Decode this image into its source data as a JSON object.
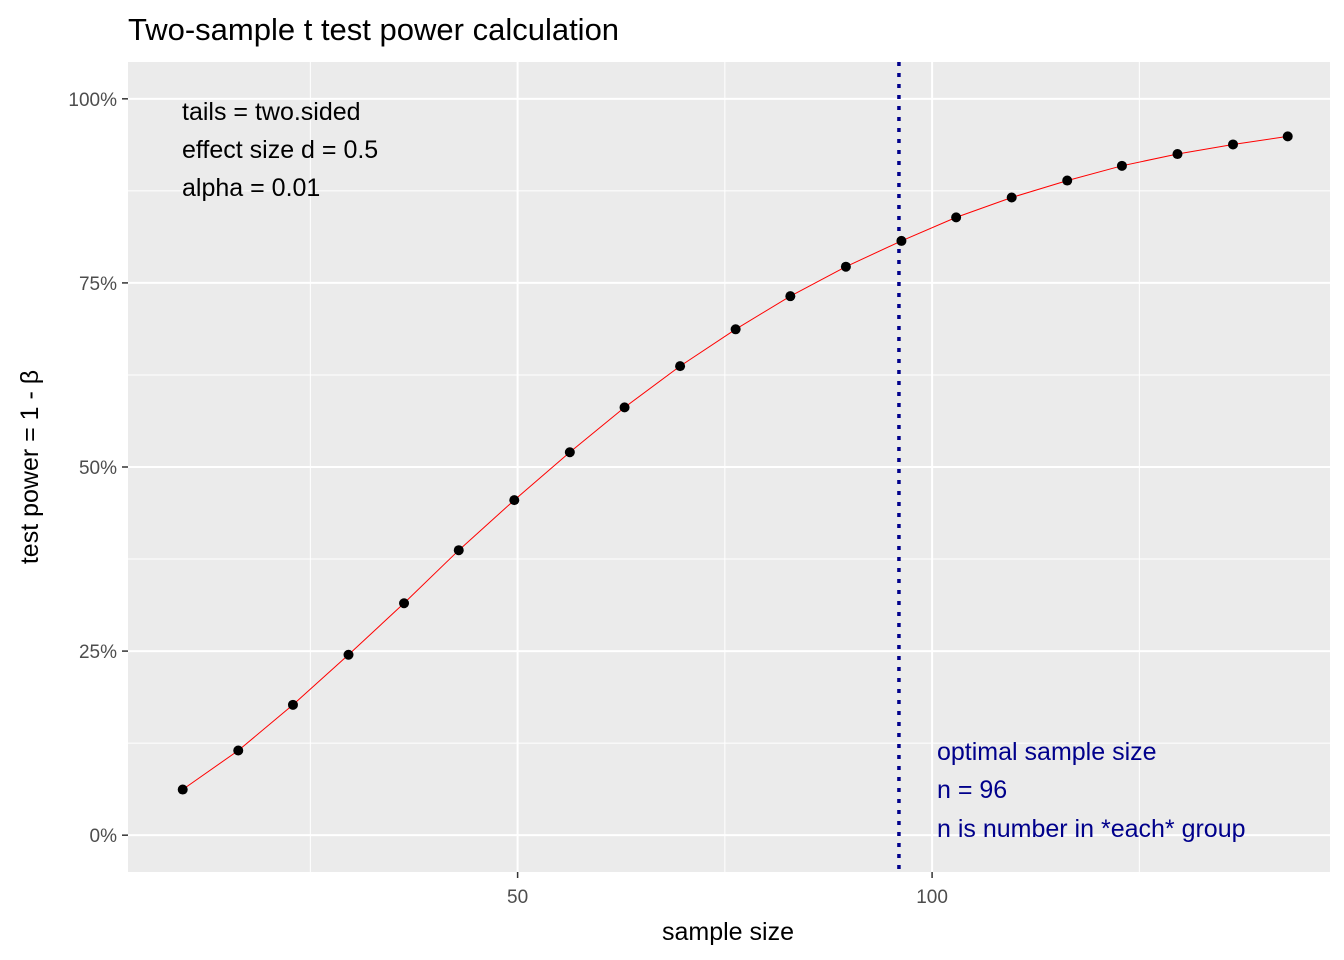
{
  "chart_data": {
    "type": "line",
    "title": "Two-sample t test power calculation",
    "xlabel": "sample size",
    "ylabel": "test power = 1 - β",
    "xlim": [
      3,
      148
    ],
    "ylim": [
      -0.05,
      1.05
    ],
    "x_ticks": [
      {
        "value": 50,
        "label": "50"
      },
      {
        "value": 100,
        "label": "100"
      }
    ],
    "y_ticks": [
      {
        "value": 0,
        "label": "0%"
      },
      {
        "value": 0.25,
        "label": "25%"
      },
      {
        "value": 0.5,
        "label": "50%"
      },
      {
        "value": 0.75,
        "label": "75%"
      },
      {
        "value": 1,
        "label": "100%"
      }
    ],
    "grid": true,
    "series": [
      {
        "x": [
          9.6,
          16.3,
          22.9,
          29.6,
          36.3,
          42.9,
          49.6,
          56.3,
          62.9,
          69.6,
          76.3,
          82.9,
          89.6,
          96.3,
          102.9,
          109.6,
          116.3,
          122.9,
          129.6,
          136.3,
          142.9
        ],
        "y": [
          0.062,
          0.115,
          0.177,
          0.245,
          0.315,
          0.387,
          0.455,
          0.52,
          0.581,
          0.637,
          0.687,
          0.732,
          0.772,
          0.807,
          0.839,
          0.866,
          0.889,
          0.909,
          0.925,
          0.938,
          0.949
        ]
      }
    ],
    "vline": {
      "x": 96,
      "color": "#00008b",
      "style": "dotted"
    },
    "annotations": {
      "params": [
        "tails = two.sided",
        "effect size d = 0.5",
        "alpha = 0.01"
      ],
      "optimal": [
        "optimal sample size",
        "n = 96",
        "n is number in *each* group"
      ]
    },
    "colors": {
      "panel": "#ebebeb",
      "grid": "#ffffff",
      "line": "#ff0000",
      "points": "#000000",
      "optimal_text": "#00008b"
    }
  }
}
